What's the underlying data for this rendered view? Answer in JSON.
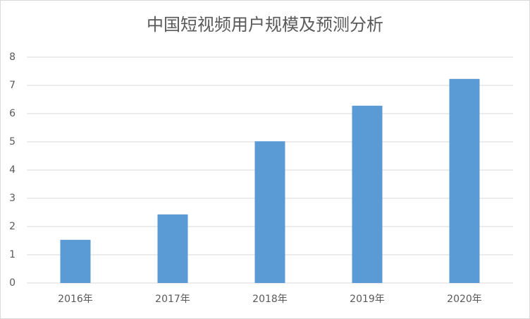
{
  "chart_data": {
    "type": "bar",
    "title": "中国短视频用户规模及预测分析",
    "categories": [
      "2016年",
      "2017年",
      "2018年",
      "2019年",
      "2020年"
    ],
    "values": [
      1.53,
      2.43,
      5.02,
      6.28,
      7.23
    ],
    "color": "#5b9bd5",
    "ylim": [
      0,
      8
    ],
    "yticks": [
      0,
      1,
      2,
      3,
      4,
      5,
      6,
      7,
      8
    ],
    "grid": true
  }
}
